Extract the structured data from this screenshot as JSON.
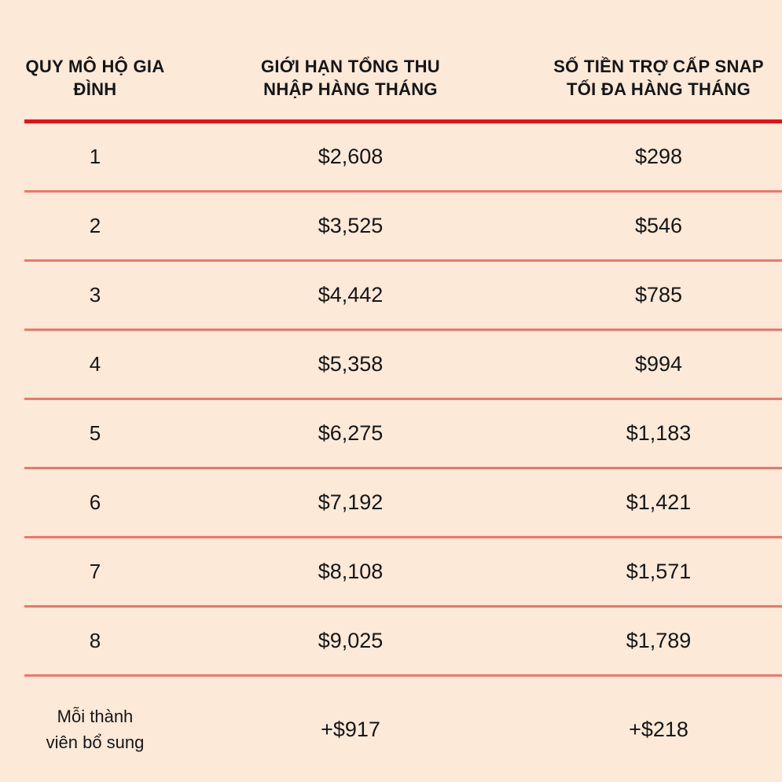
{
  "colors": {
    "background": "#FCE9D8",
    "text": "#161616",
    "header_rule": "#F2071A",
    "row_rule": "#F2746D"
  },
  "display": {
    "header_lines": {
      "household_size": [
        "QUY MÔ HỘ GIA",
        "ĐÌNH"
      ],
      "income_limit": [
        "GIỚI HẠN TỔNG THU",
        "NHẬP HÀNG THÁNG"
      ],
      "snap_benefit": [
        "SỐ TIỀN TRỢ CẤP SNAP",
        "TỐI ĐA HÀNG THÁNG"
      ]
    },
    "extra_member_label_lines": [
      "Mỗi thành",
      "viên bổ sung"
    ]
  },
  "chart_data": {
    "type": "table",
    "columns": [
      "QUY MÔ HỘ GIA ĐÌNH",
      "GIỚI HẠN TỔNG THU NHẬP HÀNG THÁNG",
      "SỐ TIỀN TRỢ CẤP SNAP TỐI ĐA HÀNG THÁNG"
    ],
    "rows": [
      [
        "1",
        "$2,608",
        "$298"
      ],
      [
        "2",
        "$3,525",
        "$546"
      ],
      [
        "3",
        "$4,442",
        "$785"
      ],
      [
        "4",
        "$5,358",
        "$994"
      ],
      [
        "5",
        "$6,275",
        "$1,183"
      ],
      [
        "6",
        "$7,192",
        "$1,421"
      ],
      [
        "7",
        "$8,108",
        "$1,571"
      ],
      [
        "8",
        "$9,025",
        "$1,789"
      ],
      [
        "Mỗi thành viên bổ sung",
        "+$917",
        "+$218"
      ]
    ],
    "title": "",
    "layout": {
      "grid": "horizontal red rules only",
      "header_rule_color": "#F2071A",
      "row_rule_color": "#F2746D"
    }
  }
}
